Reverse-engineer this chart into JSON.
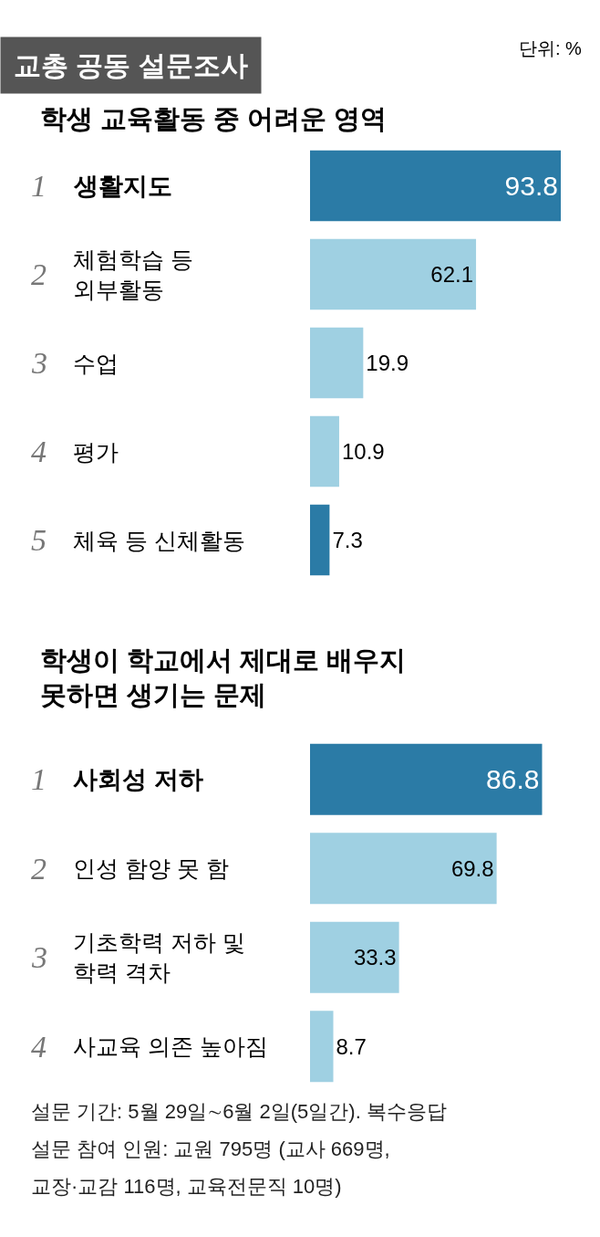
{
  "chart_data": [
    {
      "type": "bar",
      "orientation": "horizontal",
      "title": "학생 교육활동 중 어려운 영역",
      "categories": [
        "1 생활지도",
        "2 체험학습 등\n외부활동",
        "3 수업",
        "4 평가",
        "5 체육 등 신체활동"
      ],
      "values": [
        93.8,
        62.1,
        19.9,
        10.9,
        7.3
      ],
      "colors": [
        "#2b7ba6",
        "#9fd0e2",
        "#9fd0e2",
        "#9fd0e2",
        "#2b7ba6"
      ],
      "data_labels": true,
      "tick_labels": false,
      "annotations": [
        "교총 공동 설문조사",
        "단위: %"
      ]
    },
    {
      "type": "bar",
      "orientation": "horizontal",
      "title": "학생이 학교에서 제대로 배우지\n못하면 생기는 문제",
      "categories": [
        "1 사회성 저하",
        "2 인성 함양 못 함",
        "3 기초학력 저하 및\n학력 격차",
        "4 사교육 의존 높아짐"
      ],
      "values": [
        86.8,
        69.8,
        33.3,
        8.7
      ],
      "colors": [
        "#2b7ba6",
        "#9fd0e2",
        "#9fd0e2",
        "#9fd0e2"
      ],
      "data_labels": true,
      "tick_labels": false,
      "annotations": [
        "설문 기간: 5월 29일∼6월 2일(5일간). 복수응답",
        "설문 참여 인원: 교원 795명 (교사 669명,",
        "교장·교감 116명, 교육전문직 10명)"
      ]
    }
  ]
}
